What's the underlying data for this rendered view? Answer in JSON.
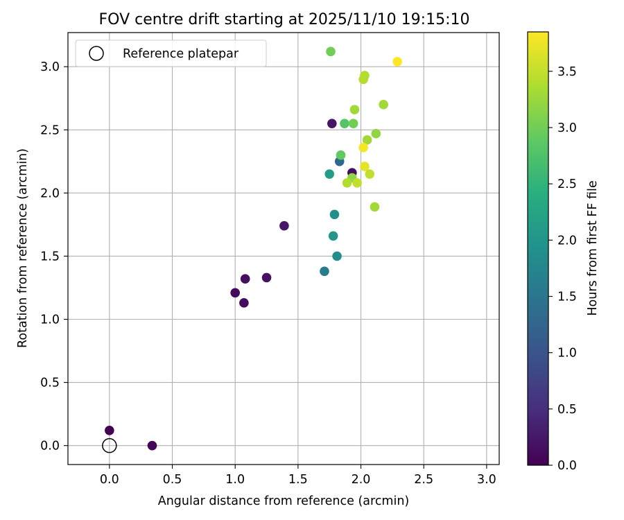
{
  "chart_data": {
    "type": "scatter",
    "title": "FOV centre drift starting at 2025/11/10 19:15:10",
    "xlabel": "Angular distance from reference (arcmin)",
    "ylabel": "Rotation from reference (arcmin)",
    "xlim": [
      -0.33,
      3.1
    ],
    "ylim": [
      -0.15,
      3.27
    ],
    "xticks": [
      0.0,
      0.5,
      1.0,
      1.5,
      2.0,
      2.5,
      3.0
    ],
    "xtick_labels": [
      "0.0",
      "0.5",
      "1.0",
      "1.5",
      "2.0",
      "2.5",
      "3.0"
    ],
    "yticks": [
      0.0,
      0.5,
      1.0,
      1.5,
      2.0,
      2.5,
      3.0
    ],
    "ytick_labels": [
      "0.0",
      "0.5",
      "1.0",
      "1.5",
      "2.0",
      "2.5",
      "3.0"
    ],
    "grid": true,
    "legend": {
      "position": "top-left",
      "entries": [
        {
          "label": "Reference platepar",
          "marker": "open-circle"
        }
      ]
    },
    "reference_point": {
      "x": 0.0,
      "y": 0.0
    },
    "colorbar": {
      "label": "Hours from first FF file",
      "range": [
        0.0,
        3.85
      ],
      "ticks": [
        0.0,
        0.5,
        1.0,
        1.5,
        2.0,
        2.5,
        3.0,
        3.5
      ],
      "tick_labels": [
        "0.0",
        "0.5",
        "1.0",
        "1.5",
        "2.0",
        "2.5",
        "3.0",
        "3.5"
      ],
      "colormap": "viridis"
    },
    "points": [
      {
        "x": 0.0,
        "y": 0.12,
        "hours": 0.0
      },
      {
        "x": 0.34,
        "y": 0.0,
        "hours": 0.05
      },
      {
        "x": 1.0,
        "y": 1.21,
        "hours": 0.1
      },
      {
        "x": 1.07,
        "y": 1.13,
        "hours": 0.12
      },
      {
        "x": 1.08,
        "y": 1.32,
        "hours": 0.15
      },
      {
        "x": 1.25,
        "y": 1.33,
        "hours": 0.18
      },
      {
        "x": 1.39,
        "y": 1.74,
        "hours": 0.25
      },
      {
        "x": 1.77,
        "y": 2.55,
        "hours": 0.22
      },
      {
        "x": 1.93,
        "y": 2.16,
        "hours": 0.15
      },
      {
        "x": 1.83,
        "y": 2.25,
        "hours": 1.3
      },
      {
        "x": 1.71,
        "y": 1.38,
        "hours": 1.6
      },
      {
        "x": 1.81,
        "y": 1.5,
        "hours": 1.9
      },
      {
        "x": 1.78,
        "y": 1.66,
        "hours": 2.0
      },
      {
        "x": 1.79,
        "y": 1.83,
        "hours": 1.9
      },
      {
        "x": 1.75,
        "y": 2.15,
        "hours": 2.1
      },
      {
        "x": 1.84,
        "y": 2.3,
        "hours": 2.9
      },
      {
        "x": 1.87,
        "y": 2.55,
        "hours": 2.8
      },
      {
        "x": 1.94,
        "y": 2.55,
        "hours": 3.0
      },
      {
        "x": 1.76,
        "y": 3.12,
        "hours": 3.0
      },
      {
        "x": 1.95,
        "y": 2.66,
        "hours": 3.3
      },
      {
        "x": 2.02,
        "y": 2.9,
        "hours": 3.4
      },
      {
        "x": 2.03,
        "y": 2.93,
        "hours": 3.4
      },
      {
        "x": 2.18,
        "y": 2.7,
        "hours": 3.3
      },
      {
        "x": 2.12,
        "y": 2.47,
        "hours": 3.2
      },
      {
        "x": 2.05,
        "y": 2.42,
        "hours": 3.3
      },
      {
        "x": 1.93,
        "y": 2.12,
        "hours": 3.2
      },
      {
        "x": 1.89,
        "y": 2.08,
        "hours": 3.4
      },
      {
        "x": 1.97,
        "y": 2.08,
        "hours": 3.5
      },
      {
        "x": 2.07,
        "y": 2.15,
        "hours": 3.5
      },
      {
        "x": 2.11,
        "y": 1.89,
        "hours": 3.3
      },
      {
        "x": 2.02,
        "y": 2.36,
        "hours": 3.8
      },
      {
        "x": 2.03,
        "y": 2.21,
        "hours": 3.7
      },
      {
        "x": 2.29,
        "y": 3.04,
        "hours": 3.85
      }
    ]
  }
}
